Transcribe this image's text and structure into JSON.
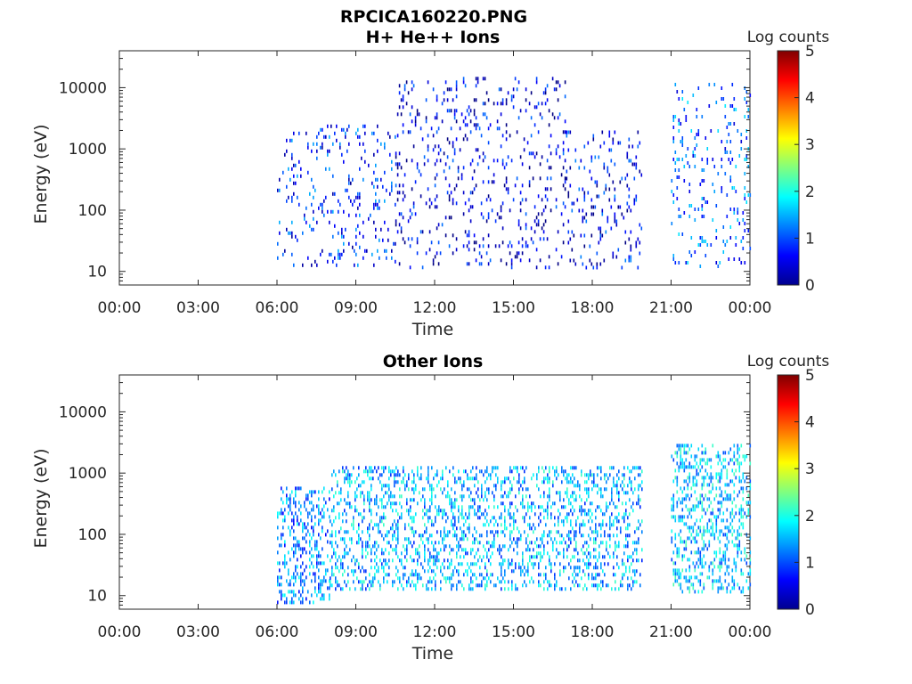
{
  "figure_title": "RPCICA160220.PNG",
  "colorbar": {
    "label": "Log counts",
    "ticks": [
      "0",
      "1",
      "2",
      "3",
      "4",
      "5"
    ],
    "range": [
      0,
      5
    ],
    "colormap": "jet"
  },
  "chart_data": [
    {
      "type": "heatmap",
      "title": "H+ He++ Ions",
      "xlabel": "Time",
      "ylabel": "Energy (eV)",
      "x_ticks": [
        "00:00",
        "03:00",
        "06:00",
        "09:00",
        "12:00",
        "15:00",
        "18:00",
        "21:00",
        "00:00"
      ],
      "y_ticks": [
        "10",
        "100",
        "1000",
        "10000"
      ],
      "y_scale": "log",
      "xlim_hours": [
        0,
        24
      ],
      "ylim_eV": [
        6,
        40000
      ],
      "color_range": [
        0,
        5
      ],
      "data_intervals_hours": [
        [
          6.0,
          19.9
        ],
        [
          21.0,
          24.0
        ]
      ],
      "activity": [
        {
          "from_h": 6.0,
          "to_h": 10.5,
          "min_eV": 12,
          "max_eV": 2500,
          "mean_log_counts": 0.8
        },
        {
          "from_h": 10.5,
          "to_h": 17.0,
          "min_eV": 12,
          "max_eV": 15000,
          "mean_log_counts": 0.5
        },
        {
          "from_h": 17.0,
          "to_h": 19.9,
          "min_eV": 12,
          "max_eV": 2000,
          "mean_log_counts": 0.6
        },
        {
          "from_h": 21.0,
          "to_h": 24.0,
          "min_eV": 12,
          "max_eV": 12000,
          "mean_log_counts": 1.1
        }
      ]
    },
    {
      "type": "heatmap",
      "title": "Other Ions",
      "xlabel": "Time",
      "ylabel": "Energy (eV)",
      "x_ticks": [
        "00:00",
        "03:00",
        "06:00",
        "09:00",
        "12:00",
        "15:00",
        "18:00",
        "21:00",
        "00:00"
      ],
      "y_ticks": [
        "10",
        "100",
        "1000",
        "10000"
      ],
      "y_scale": "log",
      "xlim_hours": [
        0,
        24
      ],
      "ylim_eV": [
        6,
        40000
      ],
      "color_range": [
        0,
        5
      ],
      "data_intervals_hours": [
        [
          6.0,
          19.9
        ],
        [
          21.0,
          24.0
        ]
      ],
      "activity": [
        {
          "from_h": 6.0,
          "to_h": 8.0,
          "min_eV": 8,
          "max_eV": 600,
          "mean_log_counts": 1.3
        },
        {
          "from_h": 8.0,
          "to_h": 19.9,
          "min_eV": 12,
          "max_eV": 1300,
          "mean_log_counts": 1.5
        },
        {
          "from_h": 21.0,
          "to_h": 24.0,
          "min_eV": 12,
          "max_eV": 3000,
          "mean_log_counts": 1.6
        }
      ]
    }
  ]
}
